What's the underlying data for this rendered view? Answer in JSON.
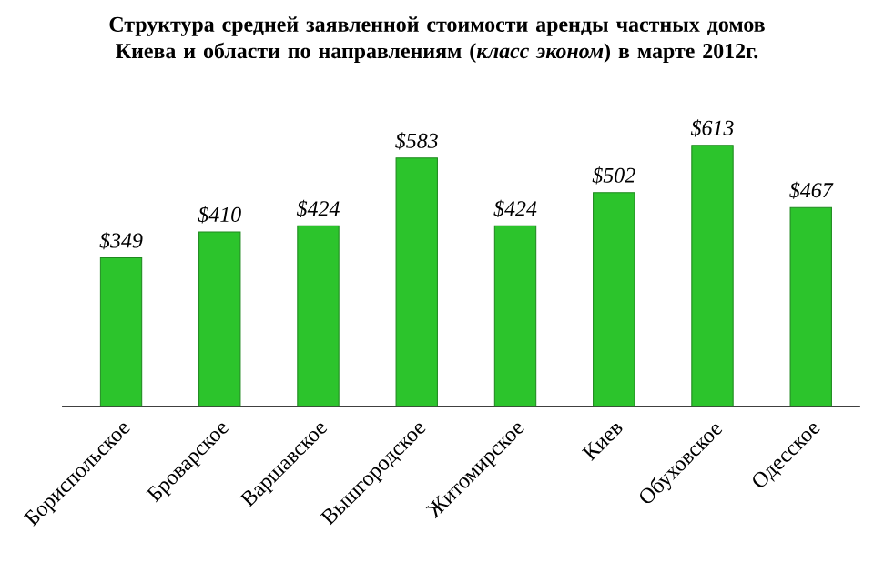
{
  "chart_data": {
    "type": "bar",
    "title": "Структура средней заявленной стоимости аренды частных домов Киева и области по направлениям (*класс эконом*) в марте 2012г.",
    "categories": [
      "Бориспольское",
      "Броварское",
      "Варшавское",
      "Вышгородское",
      "Житомирское",
      "Киев",
      "Обуховское",
      "Одесское"
    ],
    "values": [
      349,
      410,
      424,
      583,
      424,
      502,
      613,
      467
    ],
    "value_labels": [
      "$349",
      "$410",
      "$424",
      "$583",
      "$424",
      "$502",
      "$613",
      "$467"
    ],
    "color": "#2cc42c"
  }
}
